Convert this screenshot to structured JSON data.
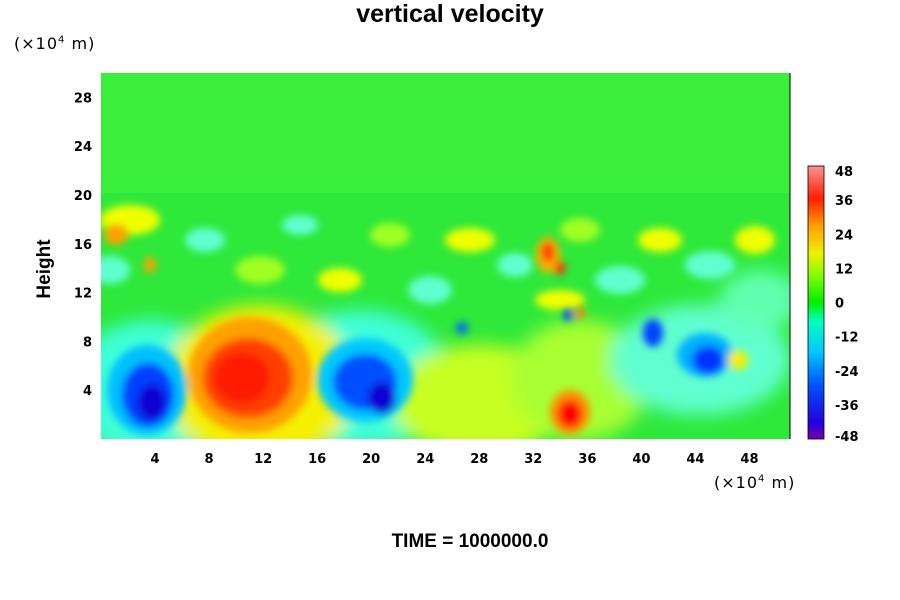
{
  "chart_data": {
    "type": "heatmap",
    "title": "vertical velocity",
    "ylabel": "Height",
    "x_unit_prefix": "(×10",
    "x_unit_exp": "4",
    "x_unit_suffix": " m)",
    "y_unit_prefix": "(×10",
    "y_unit_exp": "4",
    "y_unit_suffix": " m)",
    "xlim": [
      0,
      51
    ],
    "ylim": [
      0,
      30
    ],
    "xticks": [
      "4",
      "8",
      "12",
      "16",
      "20",
      "24",
      "28",
      "32",
      "36",
      "40",
      "44",
      "48"
    ],
    "yticks": [
      "4",
      "8",
      "12",
      "16",
      "20",
      "24",
      "28"
    ],
    "colorbar": {
      "range": [
        -48,
        48
      ],
      "ticks": [
        "48",
        "36",
        "24",
        "12",
        "0",
        "-12",
        "-24",
        "-36",
        "-48"
      ]
    },
    "features": [
      {
        "x": 4,
        "y": 4,
        "value": -38
      },
      {
        "x": 10.5,
        "y": 5,
        "value": 36
      },
      {
        "x": 21,
        "y": 4,
        "value": -38
      },
      {
        "x": 34.5,
        "y": 2,
        "value": 44
      },
      {
        "x": 33,
        "y": 15,
        "value": 40
      },
      {
        "x": 45.5,
        "y": 6.5,
        "value": -32
      },
      {
        "x": 41,
        "y": 8.5,
        "value": -30
      },
      {
        "x": 1.5,
        "y": 16.5,
        "value": 26
      }
    ],
    "footer": "TIME = 1000000.0"
  }
}
